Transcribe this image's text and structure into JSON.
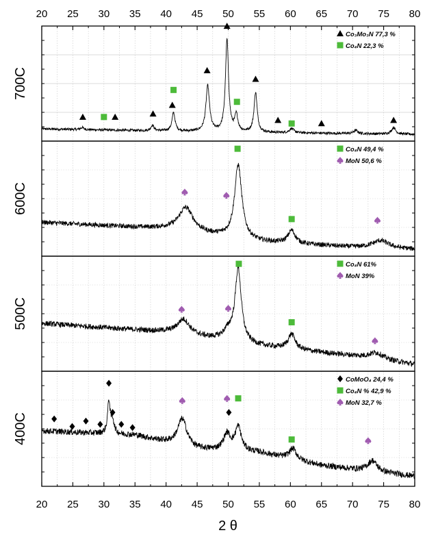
{
  "chart_data": {
    "type": "line",
    "xlabel": "2 θ",
    "xlim": [
      20,
      80
    ],
    "x_ticks": [
      "20",
      "25",
      "30",
      "35",
      "40",
      "45",
      "50",
      "55",
      "60",
      "65",
      "70",
      "75",
      "80"
    ],
    "grid": true,
    "marker_colors": {
      "Co3Mo3N": "#000000",
      "Co4N": "#4dbb3a",
      "MoN": "#a05cb0",
      "CoMoO4": "#000000"
    },
    "panels": [
      {
        "label": "700C",
        "legend": [
          {
            "phase": "Co3Mo3N",
            "marker": "triangle",
            "text": "Co₃Mo₃N 77,3 %"
          },
          {
            "phase": "Co4N",
            "marker": "square",
            "text": "Co₄N 22,3 %"
          }
        ],
        "baseline": [
          [
            20,
            0.1
          ],
          [
            50,
            0.07
          ],
          [
            80,
            0.05
          ]
        ],
        "noise": 0.012,
        "peaks": [
          {
            "x": 26.5,
            "h": 0.02,
            "w": 0.3
          },
          {
            "x": 37.8,
            "h": 0.05,
            "w": 0.3
          },
          {
            "x": 41.2,
            "h": 0.17,
            "w": 0.3
          },
          {
            "x": 46.7,
            "h": 0.42,
            "w": 0.35
          },
          {
            "x": 49.8,
            "h": 0.85,
            "w": 0.3
          },
          {
            "x": 51.3,
            "h": 0.15,
            "w": 0.3
          },
          {
            "x": 54.4,
            "h": 0.37,
            "w": 0.3
          },
          {
            "x": 60.2,
            "h": 0.04,
            "w": 0.4
          },
          {
            "x": 70.5,
            "h": 0.03,
            "w": 0.4
          },
          {
            "x": 76.6,
            "h": 0.06,
            "w": 0.4
          }
        ],
        "markers": [
          {
            "phase": "Co3Mo3N",
            "x": 26.6,
            "y": 0.21
          },
          {
            "phase": "Co4N",
            "x": 30.0,
            "y": 0.21
          },
          {
            "phase": "Co3Mo3N",
            "x": 31.8,
            "y": 0.21
          },
          {
            "phase": "Co3Mo3N",
            "x": 37.9,
            "y": 0.24
          },
          {
            "phase": "Co3Mo3N",
            "x": 41.0,
            "y": 0.32
          },
          {
            "phase": "Co4N",
            "x": 41.2,
            "y": 0.46
          },
          {
            "phase": "Co3Mo3N",
            "x": 46.6,
            "y": 0.64
          },
          {
            "phase": "Co3Mo3N",
            "x": 49.8,
            "y": 1.05
          },
          {
            "phase": "Co4N",
            "x": 51.4,
            "y": 0.35
          },
          {
            "phase": "Co3Mo3N",
            "x": 54.4,
            "y": 0.56
          },
          {
            "phase": "Co3Mo3N",
            "x": 58.0,
            "y": 0.18
          },
          {
            "phase": "Co4N",
            "x": 60.2,
            "y": 0.15
          },
          {
            "phase": "Co3Mo3N",
            "x": 65.0,
            "y": 0.15
          },
          {
            "phase": "Co3Mo3N",
            "x": 76.6,
            "y": 0.18
          }
        ]
      },
      {
        "label": "600C",
        "legend": [
          {
            "phase": "Co4N",
            "marker": "square",
            "text": "Co₄N 49,4 %"
          },
          {
            "phase": "MoN",
            "marker": "spade",
            "text": "MoN 50,6 %"
          }
        ],
        "baseline": [
          [
            20,
            0.3
          ],
          [
            40,
            0.24
          ],
          [
            55,
            0.12
          ],
          [
            70,
            0.07
          ],
          [
            80,
            0.05
          ]
        ],
        "noise": 0.022,
        "peaks": [
          {
            "x": 43.2,
            "h": 0.22,
            "w": 1.4
          },
          {
            "x": 51.6,
            "h": 0.68,
            "w": 0.7
          },
          {
            "x": 60.2,
            "h": 0.12,
            "w": 0.7
          },
          {
            "x": 74.5,
            "h": 0.07,
            "w": 1.6
          }
        ],
        "markers": [
          {
            "phase": "MoN",
            "x": 43.0,
            "y": 0.58
          },
          {
            "phase": "MoN",
            "x": 49.7,
            "y": 0.55
          },
          {
            "phase": "Co4N",
            "x": 51.5,
            "y": 0.98
          },
          {
            "phase": "Co4N",
            "x": 60.2,
            "y": 0.33
          },
          {
            "phase": "MoN",
            "x": 74.0,
            "y": 0.32
          }
        ]
      },
      {
        "label": "500C",
        "legend": [
          {
            "phase": "Co4N",
            "marker": "square",
            "text": "Co₄N 61%"
          },
          {
            "phase": "MoN",
            "marker": "spade",
            "text": "MoN 39%"
          }
        ],
        "baseline": [
          [
            20,
            0.43
          ],
          [
            40,
            0.35
          ],
          [
            55,
            0.22
          ],
          [
            70,
            0.13
          ],
          [
            80,
            0.05
          ]
        ],
        "noise": 0.025,
        "peaks": [
          {
            "x": 42.8,
            "h": 0.14,
            "w": 1.2
          },
          {
            "x": 50.0,
            "h": 0.08,
            "w": 1.0
          },
          {
            "x": 51.6,
            "h": 0.67,
            "w": 0.6
          },
          {
            "x": 60.2,
            "h": 0.14,
            "w": 0.7
          },
          {
            "x": 73.8,
            "h": 0.06,
            "w": 1.4
          }
        ],
        "markers": [
          {
            "phase": "MoN",
            "x": 42.5,
            "y": 0.56
          },
          {
            "phase": "MoN",
            "x": 50.0,
            "y": 0.57
          },
          {
            "phase": "Co4N",
            "x": 51.7,
            "y": 0.98
          },
          {
            "phase": "Co4N",
            "x": 60.2,
            "y": 0.44
          },
          {
            "phase": "MoN",
            "x": 73.6,
            "y": 0.27
          }
        ]
      },
      {
        "label": "400C",
        "legend": [
          {
            "phase": "CoMoO4",
            "marker": "diamond",
            "text": "CoMoO₄ 24,4 %"
          },
          {
            "phase": "Co4N",
            "marker": "square",
            "text": "Co₄N %  42,9 %"
          },
          {
            "phase": "MoN",
            "marker": "spade",
            "text": "MoN 32,7 %"
          }
        ],
        "baseline": [
          [
            20,
            0.5
          ],
          [
            35,
            0.46
          ],
          [
            45,
            0.33
          ],
          [
            55,
            0.3
          ],
          [
            65,
            0.18
          ],
          [
            80,
            0.08
          ]
        ],
        "noise": 0.028,
        "peaks": [
          {
            "x": 30.8,
            "h": 0.3,
            "w": 0.25
          },
          {
            "x": 31.4,
            "h": 0.12,
            "w": 0.3
          },
          {
            "x": 42.6,
            "h": 0.25,
            "w": 0.9
          },
          {
            "x": 49.8,
            "h": 0.15,
            "w": 0.7
          },
          {
            "x": 51.6,
            "h": 0.22,
            "w": 0.6
          },
          {
            "x": 60.4,
            "h": 0.1,
            "w": 0.7
          },
          {
            "x": 73.2,
            "h": 0.1,
            "w": 0.9
          }
        ],
        "markers": [
          {
            "phase": "CoMoO4",
            "x": 22.0,
            "y": 0.61
          },
          {
            "phase": "CoMoO4",
            "x": 24.9,
            "y": 0.54
          },
          {
            "phase": "CoMoO4",
            "x": 27.1,
            "y": 0.59
          },
          {
            "phase": "CoMoO4",
            "x": 29.4,
            "y": 0.56
          },
          {
            "phase": "CoMoO4",
            "x": 30.8,
            "y": 0.94
          },
          {
            "phase": "CoMoO4",
            "x": 31.4,
            "y": 0.67
          },
          {
            "phase": "CoMoO4",
            "x": 32.8,
            "y": 0.56
          },
          {
            "phase": "CoMoO4",
            "x": 34.6,
            "y": 0.53
          },
          {
            "phase": "MoN",
            "x": 42.6,
            "y": 0.78
          },
          {
            "phase": "MoN",
            "x": 49.8,
            "y": 0.8
          },
          {
            "phase": "CoMoO4",
            "x": 50.1,
            "y": 0.67
          },
          {
            "phase": "Co4N",
            "x": 51.6,
            "y": 0.8
          },
          {
            "phase": "Co4N",
            "x": 60.2,
            "y": 0.42
          },
          {
            "phase": "MoN",
            "x": 72.5,
            "y": 0.41
          }
        ]
      }
    ]
  }
}
